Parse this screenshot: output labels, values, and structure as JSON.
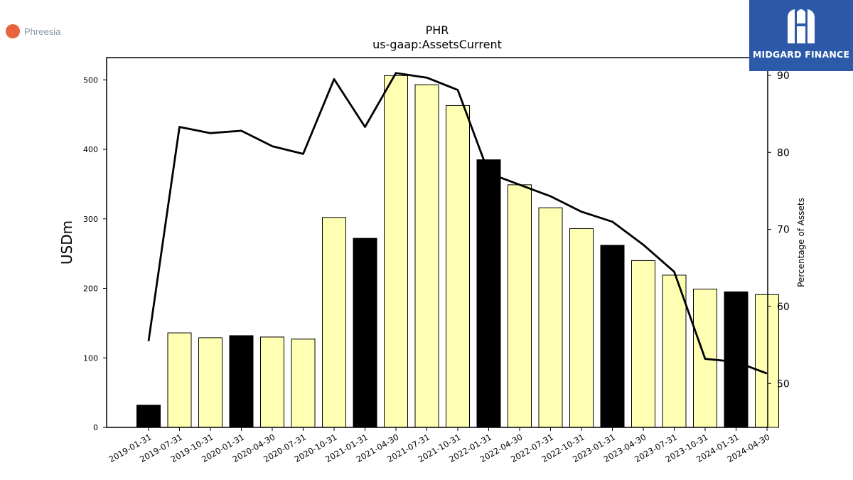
{
  "brand": {
    "name": "Phreesia",
    "dot_color": "#e8643c"
  },
  "watermark": {
    "text": "MIDGARD FINANCE",
    "bg_color": "#2c5aa8",
    "icon": "midgard-logo-icon"
  },
  "colors": {
    "bar_default": "#ffffb4",
    "bar_highlight": "#000000",
    "line": "#000000",
    "axis": "#000000"
  },
  "chart_data": {
    "type": "bar",
    "title": "PHR",
    "subtitle": "us-gaap:AssetsCurrent",
    "ylabel": "USDm",
    "y2label": "Percentage of Assets",
    "categories": [
      "2019-01-31",
      "2019-07-31",
      "2019-10-31",
      "2020-01-31",
      "2020-04-30",
      "2020-07-31",
      "2020-10-31",
      "2021-01-31",
      "2021-04-30",
      "2021-07-31",
      "2021-10-31",
      "2022-01-31",
      "2022-04-30",
      "2022-07-31",
      "2022-10-31",
      "2023-01-31",
      "2023-04-30",
      "2023-07-31",
      "2023-10-31",
      "2024-01-31",
      "2024-04-30"
    ],
    "values": [
      32,
      136,
      129,
      132,
      130,
      127,
      302,
      272,
      506,
      493,
      463,
      385,
      349,
      316,
      286,
      262,
      240,
      219,
      199,
      195,
      191
    ],
    "highlight": [
      true,
      false,
      false,
      true,
      false,
      false,
      false,
      true,
      false,
      false,
      false,
      true,
      false,
      false,
      false,
      true,
      false,
      false,
      false,
      true,
      false
    ],
    "line_values": [
      55.5,
      83.3,
      82.5,
      82.8,
      80.8,
      79.8,
      89.5,
      83.3,
      90.3,
      89.7,
      88.1,
      77.3,
      75.8,
      74.3,
      72.3,
      71.0,
      68.0,
      64.5,
      53.2,
      52.8,
      51.3
    ],
    "ylim": [
      0,
      532
    ],
    "y2lim": [
      44.3,
      92.3
    ],
    "yticks": [
      0,
      100,
      200,
      300,
      400,
      500
    ],
    "y2ticks": [
      50,
      60,
      70,
      80,
      90
    ],
    "grid": false,
    "legend": "none"
  }
}
